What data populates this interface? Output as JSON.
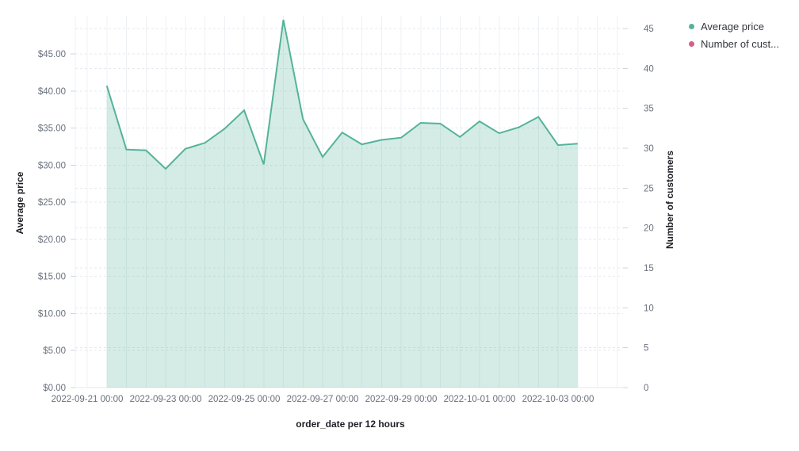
{
  "chart": {
    "legend": {
      "items": [
        {
          "label": "Average price",
          "color": "#54B399"
        },
        {
          "label": "Number of cust...",
          "color": "#D36086"
        }
      ]
    },
    "axes": {
      "left": {
        "title": "Average price",
        "tick_labels": [
          "$0.00",
          "$5.00",
          "$10.00",
          "$15.00",
          "$20.00",
          "$25.00",
          "$30.00",
          "$35.00",
          "$40.00",
          "$45.00"
        ]
      },
      "right": {
        "title": "Number of customers",
        "tick_labels": [
          "0",
          "5",
          "10",
          "15",
          "20",
          "25",
          "30",
          "35",
          "40",
          "45"
        ]
      },
      "bottom": {
        "title": "order_date per 12 hours",
        "tick_labels": [
          "2022-09-21 00:00",
          "2022-09-23 00:00",
          "2022-09-25 00:00",
          "2022-09-27 00:00",
          "2022-09-29 00:00",
          "2022-10-01 00:00",
          "2022-10-03 00:00"
        ]
      }
    },
    "colors": {
      "grid_dashed": "#e6eaef",
      "grid_solid": "#eef1f4",
      "baseline": "#e4e8ec",
      "tick_mark": "#d0d6de",
      "tick_text": "#69707d",
      "title_text": "#1d1e24"
    }
  },
  "chart_data": {
    "type": "area",
    "title": "",
    "xlabel": "order_date per 12 hours",
    "ylabel_left": "Average price",
    "ylabel_right": "Number of customers",
    "ylim_left": [
      0,
      50
    ],
    "ylim_right": [
      0,
      47
    ],
    "x_tick_interval": "2 days",
    "bucket_interval": "12 hours",
    "grid": true,
    "legend_position": "top-right",
    "series": [
      {
        "name": "Average price",
        "axis": "left",
        "color": "#54B399",
        "fill_opacity": 0.25,
        "x": [
          "2022-09-21 12:00",
          "2022-09-22 00:00",
          "2022-09-22 12:00",
          "2022-09-23 00:00",
          "2022-09-23 12:00",
          "2022-09-24 00:00",
          "2022-09-24 12:00",
          "2022-09-25 00:00",
          "2022-09-25 12:00",
          "2022-09-26 00:00",
          "2022-09-26 12:00",
          "2022-09-27 00:00",
          "2022-09-27 12:00",
          "2022-09-28 00:00",
          "2022-09-28 12:00",
          "2022-09-29 00:00",
          "2022-09-29 12:00",
          "2022-09-30 00:00",
          "2022-09-30 12:00",
          "2022-10-01 00:00",
          "2022-10-01 12:00",
          "2022-10-02 00:00",
          "2022-10-02 12:00",
          "2022-10-03 00:00",
          "2022-10-03 12:00"
        ],
        "values": [
          40.7,
          32.1,
          32.0,
          29.5,
          32.2,
          33.0,
          34.9,
          37.4,
          30.1,
          49.6,
          36.2,
          31.1,
          34.4,
          32.8,
          33.4,
          33.7,
          35.7,
          35.6,
          33.8,
          35.9,
          34.3,
          35.1,
          36.5,
          32.7,
          32.9
        ]
      },
      {
        "name": "Number of customers",
        "axis": "right",
        "color": "#D36086",
        "x": [],
        "values": []
      }
    ]
  }
}
